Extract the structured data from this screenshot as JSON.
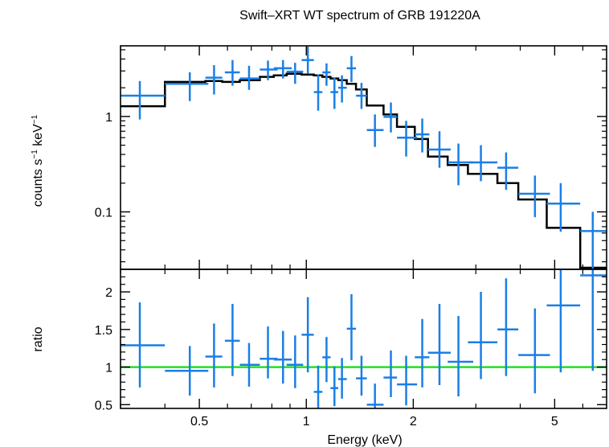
{
  "chart_data": {
    "type": "scatter",
    "title": "Swift–XRT WT spectrum of GRB 191220A",
    "xlabel": "Energy (keV)",
    "xscale": "log",
    "xlim": [
      0.3,
      7.0
    ],
    "xticks": [
      {
        "value": 0.5,
        "label": "0.5"
      },
      {
        "value": 1,
        "label": "1"
      },
      {
        "value": 2,
        "label": "2"
      },
      {
        "value": 5,
        "label": "5"
      }
    ],
    "colors": {
      "data": "#1a7fe6",
      "model": "#000000",
      "unity": "#22e022"
    },
    "panels": [
      {
        "name": "spectrum",
        "ylabel_main": "counts s",
        "ylabel_sup1": "−1",
        "ylabel_mid": " keV",
        "ylabel_sup2": "−1",
        "yscale": "log",
        "ylim": [
          0.025,
          5.5
        ],
        "yticks": [
          {
            "value": 0.1,
            "label": "0.1"
          },
          {
            "value": 1,
            "label": "1"
          }
        ],
        "data": [
          {
            "x": 0.34,
            "xlo": 0.3,
            "xhi": 0.4,
            "y": 1.65,
            "ylo": 0.93,
            "yhi": 2.35
          },
          {
            "x": 0.47,
            "xlo": 0.4,
            "xhi": 0.53,
            "y": 2.2,
            "ylo": 1.45,
            "yhi": 2.9
          },
          {
            "x": 0.55,
            "xlo": 0.52,
            "xhi": 0.58,
            "y": 2.55,
            "ylo": 1.7,
            "yhi": 3.45
          },
          {
            "x": 0.62,
            "xlo": 0.59,
            "xhi": 0.65,
            "y": 2.9,
            "ylo": 2.1,
            "yhi": 3.9
          },
          {
            "x": 0.69,
            "xlo": 0.65,
            "xhi": 0.74,
            "y": 2.5,
            "ylo": 1.9,
            "yhi": 3.4
          },
          {
            "x": 0.78,
            "xlo": 0.74,
            "xhi": 0.83,
            "y": 3.1,
            "ylo": 2.4,
            "yhi": 3.85
          },
          {
            "x": 0.86,
            "xlo": 0.81,
            "xhi": 0.91,
            "y": 3.2,
            "ylo": 2.5,
            "yhi": 3.9
          },
          {
            "x": 0.93,
            "xlo": 0.88,
            "xhi": 0.98,
            "y": 2.95,
            "ylo": 2.2,
            "yhi": 3.65
          },
          {
            "x": 1.01,
            "xlo": 0.97,
            "xhi": 1.05,
            "y": 3.9,
            "ylo": 2.8,
            "yhi": 5.4
          },
          {
            "x": 1.08,
            "xlo": 1.05,
            "xhi": 1.11,
            "y": 1.8,
            "ylo": 1.15,
            "yhi": 2.75
          },
          {
            "x": 1.14,
            "xlo": 1.11,
            "xhi": 1.17,
            "y": 2.9,
            "ylo": 2.1,
            "yhi": 3.6
          },
          {
            "x": 1.2,
            "xlo": 1.17,
            "xhi": 1.23,
            "y": 1.8,
            "ylo": 1.2,
            "yhi": 2.55
          },
          {
            "x": 1.26,
            "xlo": 1.23,
            "xhi": 1.3,
            "y": 2.0,
            "ylo": 1.4,
            "yhi": 2.7
          },
          {
            "x": 1.34,
            "xlo": 1.3,
            "xhi": 1.38,
            "y": 3.2,
            "ylo": 2.3,
            "yhi": 4.3
          },
          {
            "x": 1.43,
            "xlo": 1.38,
            "xhi": 1.48,
            "y": 1.65,
            "ylo": 1.2,
            "yhi": 2.25
          },
          {
            "x": 1.56,
            "xlo": 1.48,
            "xhi": 1.65,
            "y": 0.72,
            "ylo": 0.48,
            "yhi": 1.05
          },
          {
            "x": 1.73,
            "xlo": 1.65,
            "xhi": 1.8,
            "y": 0.99,
            "ylo": 0.68,
            "yhi": 1.4
          },
          {
            "x": 1.91,
            "xlo": 1.8,
            "xhi": 2.05,
            "y": 0.6,
            "ylo": 0.38,
            "yhi": 0.9
          },
          {
            "x": 2.12,
            "xlo": 2.02,
            "xhi": 2.22,
            "y": 0.65,
            "ylo": 0.42,
            "yhi": 0.95
          },
          {
            "x": 2.37,
            "xlo": 2.2,
            "xhi": 2.55,
            "y": 0.45,
            "ylo": 0.29,
            "yhi": 0.7
          },
          {
            "x": 2.68,
            "xlo": 2.5,
            "xhi": 2.95,
            "y": 0.33,
            "ylo": 0.19,
            "yhi": 0.52
          },
          {
            "x": 3.1,
            "xlo": 2.85,
            "xhi": 3.45,
            "y": 0.33,
            "ylo": 0.21,
            "yhi": 0.5
          },
          {
            "x": 3.65,
            "xlo": 3.45,
            "xhi": 3.95,
            "y": 0.29,
            "ylo": 0.17,
            "yhi": 0.42
          },
          {
            "x": 4.4,
            "xlo": 3.95,
            "xhi": 4.85,
            "y": 0.155,
            "ylo": 0.088,
            "yhi": 0.24
          },
          {
            "x": 5.2,
            "xlo": 4.75,
            "xhi": 5.9,
            "y": 0.122,
            "ylo": 0.062,
            "yhi": 0.2
          },
          {
            "x": 6.4,
            "xlo": 5.9,
            "xhi": 7.0,
            "y": 0.063,
            "ylo": 0.025,
            "yhi": 0.1
          }
        ],
        "model_steps": [
          {
            "xlo": 0.3,
            "xhi": 0.4,
            "y": 1.28
          },
          {
            "xlo": 0.4,
            "xhi": 0.52,
            "y": 2.3
          },
          {
            "xlo": 0.52,
            "xhi": 0.58,
            "y": 2.35
          },
          {
            "xlo": 0.58,
            "xhi": 0.65,
            "y": 2.3
          },
          {
            "xlo": 0.65,
            "xhi": 0.74,
            "y": 2.4
          },
          {
            "xlo": 0.74,
            "xhi": 0.81,
            "y": 2.6
          },
          {
            "xlo": 0.81,
            "xhi": 0.88,
            "y": 2.7
          },
          {
            "xlo": 0.88,
            "xhi": 0.97,
            "y": 2.8
          },
          {
            "xlo": 0.97,
            "xhi": 1.05,
            "y": 2.75
          },
          {
            "xlo": 1.05,
            "xhi": 1.11,
            "y": 2.7
          },
          {
            "xlo": 1.11,
            "xhi": 1.17,
            "y": 2.6
          },
          {
            "xlo": 1.17,
            "xhi": 1.23,
            "y": 2.5
          },
          {
            "xlo": 1.23,
            "xhi": 1.3,
            "y": 2.4
          },
          {
            "xlo": 1.3,
            "xhi": 1.38,
            "y": 2.2
          },
          {
            "xlo": 1.38,
            "xhi": 1.48,
            "y": 1.92
          },
          {
            "xlo": 1.48,
            "xhi": 1.65,
            "y": 1.3
          },
          {
            "xlo": 1.65,
            "xhi": 1.8,
            "y": 1.05
          },
          {
            "xlo": 1.8,
            "xhi": 2.02,
            "y": 0.78
          },
          {
            "xlo": 2.02,
            "xhi": 2.2,
            "y": 0.58
          },
          {
            "xlo": 2.2,
            "xhi": 2.5,
            "y": 0.38
          },
          {
            "xlo": 2.5,
            "xhi": 2.85,
            "y": 0.31
          },
          {
            "xlo": 2.85,
            "xhi": 3.45,
            "y": 0.25
          },
          {
            "xlo": 3.45,
            "xhi": 3.95,
            "y": 0.2
          },
          {
            "xlo": 3.95,
            "xhi": 4.75,
            "y": 0.135
          },
          {
            "xlo": 4.75,
            "xhi": 5.9,
            "y": 0.068
          },
          {
            "xlo": 5.9,
            "xhi": 7.0,
            "y": 0.026
          }
        ]
      },
      {
        "name": "ratio",
        "ylabel": "ratio",
        "yscale": "linear",
        "ylim": [
          0.45,
          2.3
        ],
        "yticks": [
          {
            "value": 0.5,
            "label": "0.5"
          },
          {
            "value": 1,
            "label": "1"
          },
          {
            "value": 1.5,
            "label": "1.5"
          },
          {
            "value": 2,
            "label": "2"
          }
        ],
        "unity_line": 1,
        "data": [
          {
            "x": 0.34,
            "xlo": 0.3,
            "xhi": 0.4,
            "y": 1.29,
            "ylo": 0.73,
            "yhi": 1.86
          },
          {
            "x": 0.47,
            "xlo": 0.4,
            "xhi": 0.53,
            "y": 0.95,
            "ylo": 0.62,
            "yhi": 1.28
          },
          {
            "x": 0.55,
            "xlo": 0.52,
            "xhi": 0.58,
            "y": 1.14,
            "ylo": 0.73,
            "yhi": 1.58
          },
          {
            "x": 0.62,
            "xlo": 0.59,
            "xhi": 0.65,
            "y": 1.35,
            "ylo": 0.88,
            "yhi": 1.84
          },
          {
            "x": 0.69,
            "xlo": 0.65,
            "xhi": 0.74,
            "y": 1.03,
            "ylo": 0.74,
            "yhi": 1.32
          },
          {
            "x": 0.78,
            "xlo": 0.74,
            "xhi": 0.83,
            "y": 1.11,
            "ylo": 0.85,
            "yhi": 1.54
          },
          {
            "x": 0.86,
            "xlo": 0.81,
            "xhi": 0.91,
            "y": 1.1,
            "ylo": 0.78,
            "yhi": 1.48
          },
          {
            "x": 0.93,
            "xlo": 0.88,
            "xhi": 0.98,
            "y": 1.03,
            "ylo": 0.72,
            "yhi": 1.42
          },
          {
            "x": 1.01,
            "xlo": 0.97,
            "xhi": 1.05,
            "y": 1.43,
            "ylo": 0.93,
            "yhi": 1.93
          },
          {
            "x": 1.08,
            "xlo": 1.05,
            "xhi": 1.11,
            "y": 0.67,
            "ylo": 0.45,
            "yhi": 1.02
          },
          {
            "x": 1.14,
            "xlo": 1.11,
            "xhi": 1.17,
            "y": 1.13,
            "ylo": 0.8,
            "yhi": 1.4
          },
          {
            "x": 1.2,
            "xlo": 1.17,
            "xhi": 1.23,
            "y": 0.72,
            "ylo": 0.48,
            "yhi": 1.01
          },
          {
            "x": 1.26,
            "xlo": 1.23,
            "xhi": 1.3,
            "y": 0.84,
            "ylo": 0.58,
            "yhi": 1.12
          },
          {
            "x": 1.34,
            "xlo": 1.3,
            "xhi": 1.38,
            "y": 1.51,
            "ylo": 1.09,
            "yhi": 1.97
          },
          {
            "x": 1.43,
            "xlo": 1.38,
            "xhi": 1.48,
            "y": 0.85,
            "ylo": 0.62,
            "yhi": 1.15
          },
          {
            "x": 1.56,
            "xlo": 1.48,
            "xhi": 1.65,
            "y": 0.5,
            "ylo": 0.45,
            "yhi": 0.78
          },
          {
            "x": 1.73,
            "xlo": 1.65,
            "xhi": 1.8,
            "y": 0.86,
            "ylo": 0.6,
            "yhi": 1.22
          },
          {
            "x": 1.91,
            "xlo": 1.8,
            "xhi": 2.05,
            "y": 0.77,
            "ylo": 0.49,
            "yhi": 1.15
          },
          {
            "x": 2.12,
            "xlo": 2.02,
            "xhi": 2.22,
            "y": 1.13,
            "ylo": 0.73,
            "yhi": 1.64
          },
          {
            "x": 2.37,
            "xlo": 2.2,
            "xhi": 2.55,
            "y": 1.19,
            "ylo": 0.76,
            "yhi": 1.84
          },
          {
            "x": 2.68,
            "xlo": 2.5,
            "xhi": 2.95,
            "y": 1.07,
            "ylo": 0.61,
            "yhi": 1.68
          },
          {
            "x": 3.1,
            "xlo": 2.85,
            "xhi": 3.45,
            "y": 1.33,
            "ylo": 0.84,
            "yhi": 2.0
          },
          {
            "x": 3.65,
            "xlo": 3.45,
            "xhi": 3.95,
            "y": 1.5,
            "ylo": 0.88,
            "yhi": 2.18
          },
          {
            "x": 4.4,
            "xlo": 3.95,
            "xhi": 4.85,
            "y": 1.16,
            "ylo": 0.65,
            "yhi": 1.78
          },
          {
            "x": 5.2,
            "xlo": 4.75,
            "xhi": 5.9,
            "y": 1.82,
            "ylo": 0.93,
            "yhi": 2.3
          },
          {
            "x": 6.4,
            "xlo": 5.9,
            "xhi": 7.0,
            "y": 2.22,
            "ylo": 0.95,
            "yhi": 2.3
          }
        ]
      }
    ]
  }
}
